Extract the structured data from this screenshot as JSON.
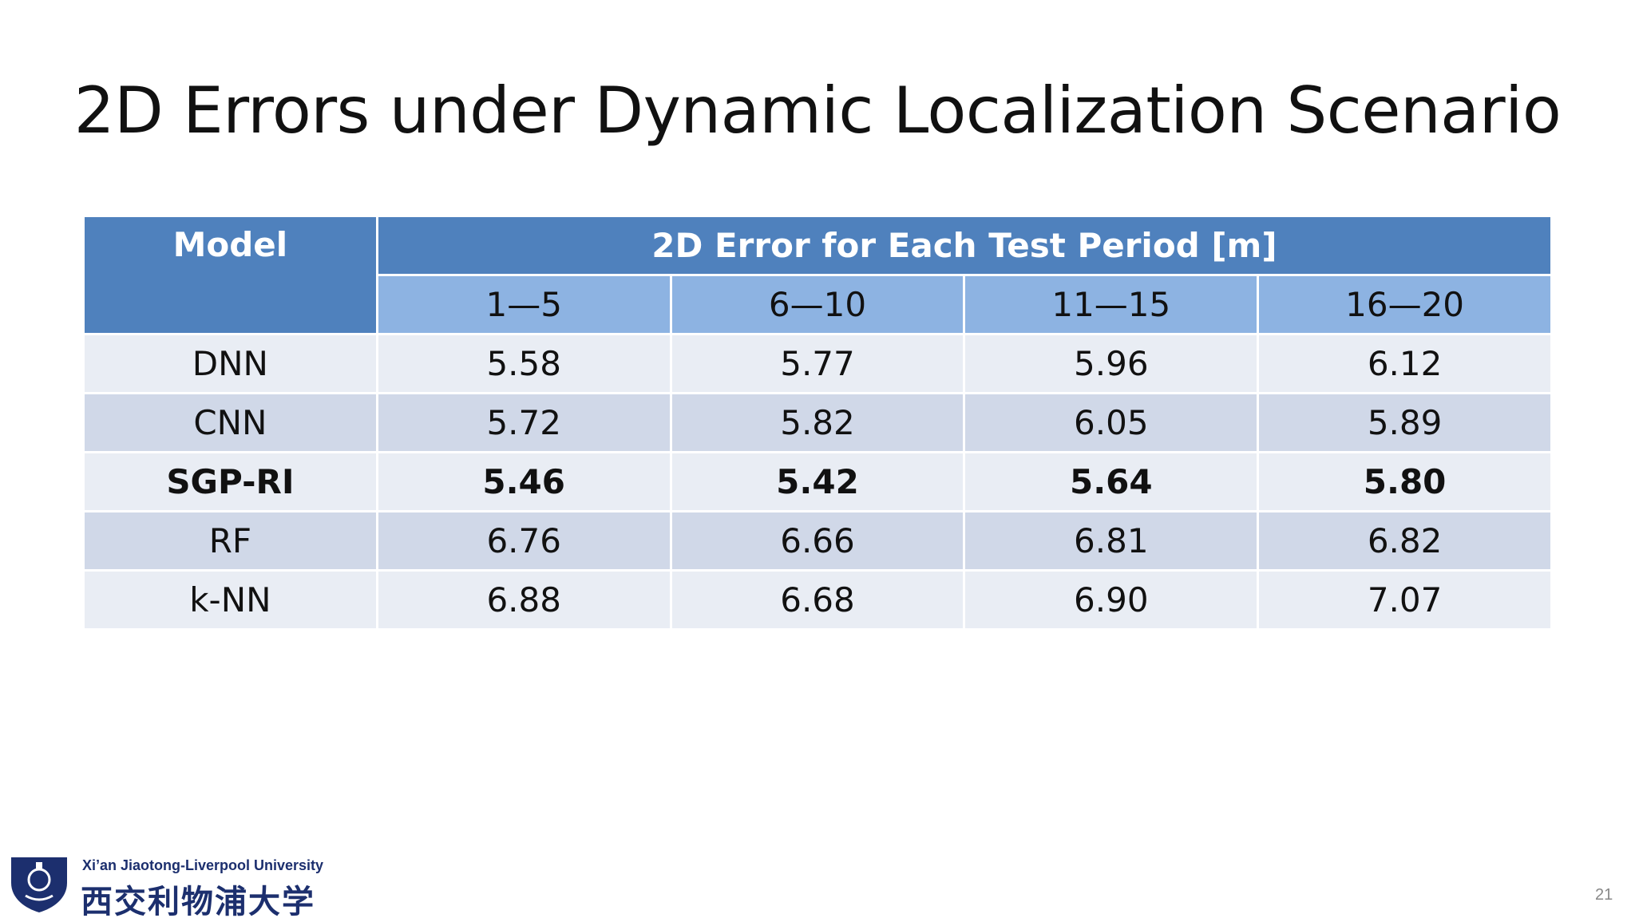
{
  "header": {
    "title": "2D Errors under Dynamic Localization Scenario"
  },
  "table": {
    "header": {
      "model": "Model",
      "group": "2D Error for Each Test Period [m]"
    },
    "columns": [
      "1—5",
      "6—10",
      "11—15",
      "16—20"
    ],
    "rows": [
      [
        "DNN",
        "5.58",
        "5.77",
        "5.96",
        "6.12"
      ],
      [
        "CNN",
        "5.72",
        "5.82",
        "6.05",
        "5.89"
      ],
      [
        "SGP-RI",
        "5.46",
        "5.42",
        "5.64",
        "5.80"
      ],
      [
        "RF",
        "6.76",
        "6.66",
        "6.81",
        "6.82"
      ],
      [
        "k-NN",
        "6.88",
        "6.68",
        "6.90",
        "7.07"
      ]
    ]
  },
  "footer": {
    "university_en": "Xi’an Jiaotong-Liverpool University",
    "university_cn": "西交利物浦大学",
    "page": "21"
  }
}
